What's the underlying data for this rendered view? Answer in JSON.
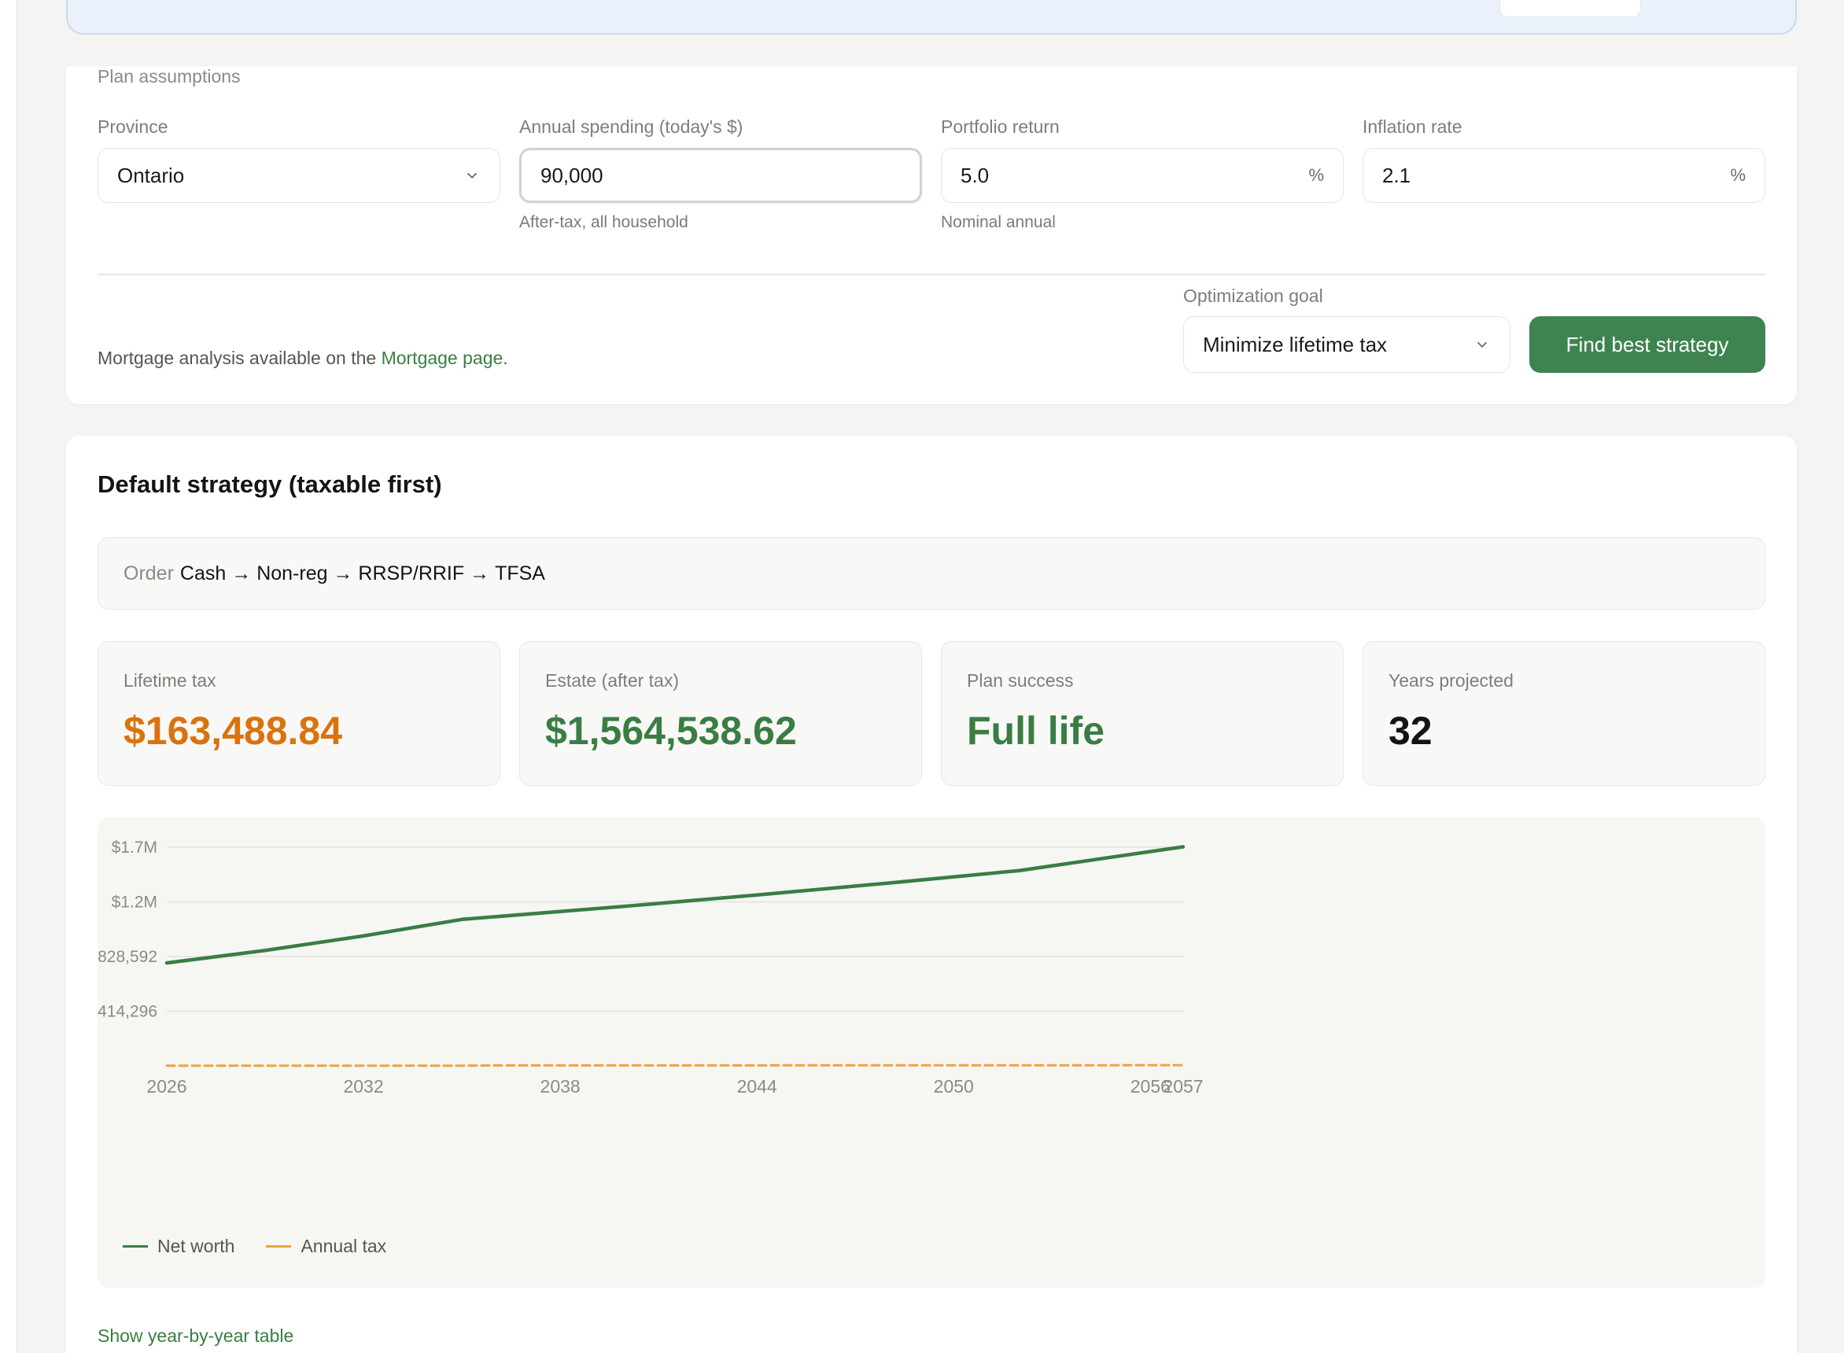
{
  "plan": {
    "section_label": "Plan assumptions",
    "province": {
      "label": "Province",
      "value": "Ontario"
    },
    "spending": {
      "label": "Annual spending (today's $)",
      "value": "90,000",
      "hint": "After-tax, all household"
    },
    "portfolio_return": {
      "label": "Portfolio return",
      "value": "5.0",
      "unit": "%",
      "hint": "Nominal annual"
    },
    "inflation": {
      "label": "Inflation rate",
      "value": "2.1",
      "unit": "%"
    },
    "mortgage_text": "Mortgage analysis available on the ",
    "mortgage_link": "Mortgage page",
    "mortgage_suffix": ".",
    "goal": {
      "label": "Optimization goal",
      "value": "Minimize lifetime tax"
    },
    "find_button": "Find best strategy"
  },
  "strategy": {
    "title": "Default strategy (taxable first)",
    "order_label": "Order",
    "order_items": [
      "Cash",
      "Non-reg",
      "RRSP/RRIF",
      "TFSA"
    ],
    "order_separator": " → ",
    "stats": [
      {
        "label": "Lifetime tax",
        "value": "$163,488.84",
        "color": "#d9730d"
      },
      {
        "label": "Estate (after tax)",
        "value": "$1,564,538.62",
        "color": "#3a7d44"
      },
      {
        "label": "Plan success",
        "value": "Full life",
        "color": "#3a7d44"
      },
      {
        "label": "Years projected",
        "value": "32",
        "color": "#141414"
      }
    ],
    "show_table": "Show year-by-year table"
  },
  "chart_data": {
    "type": "line",
    "y_ticks": [
      "$1.7M",
      "$1.2M",
      "$828,592",
      "$414,296"
    ],
    "y_tick_values": [
      1657184,
      1242888,
      828592,
      414296
    ],
    "x_ticks": [
      "2026",
      "2032",
      "2038",
      "2044",
      "2050",
      "2056",
      "2057"
    ],
    "ylim": [
      0,
      1657184
    ],
    "xlim": [
      2026,
      2057
    ],
    "grid": true,
    "legend_position": "bottom-left",
    "series": [
      {
        "name": "Net worth",
        "color": "#3a7d44",
        "dash": false,
        "x": [
          2026,
          2029,
          2032,
          2035,
          2036,
          2040,
          2044,
          2048,
          2052,
          2057
        ],
        "values": [
          780000,
          875000,
          985000,
          1110000,
          1130000,
          1210000,
          1295000,
          1385000,
          1480000,
          1660000
        ]
      },
      {
        "name": "Annual tax",
        "color": "#f0a23a",
        "dash": true,
        "x": [
          2026,
          2035,
          2036,
          2057
        ],
        "values": [
          1500,
          1500,
          3500,
          5000
        ]
      }
    ]
  }
}
